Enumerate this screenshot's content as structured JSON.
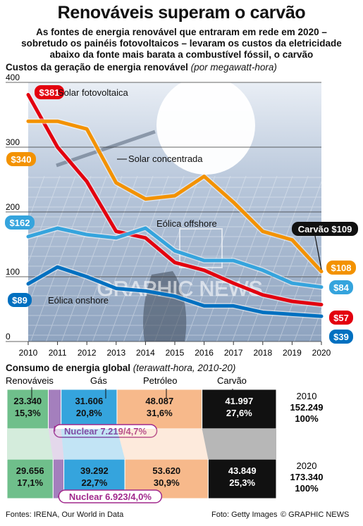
{
  "header": {
    "title": "Renováveis superam o carvão",
    "subtitle": "As fontes de energia renovável que entraram em rede em 2020 – sobretudo os painéis fotovoltaicos – levaram os custos da eletricidade abaixo da fonte mais barata a combustível fóssil, o carvão"
  },
  "chart_data": [
    {
      "type": "line",
      "title": "Custos da geração de energia renovável",
      "title_note": "(por megawatt-hora)",
      "x": [
        2010,
        2011,
        2012,
        2013,
        2014,
        2015,
        2016,
        2017,
        2018,
        2019,
        2020
      ],
      "ylim": [
        0,
        400
      ],
      "yticks": [
        0,
        100,
        200,
        300,
        400
      ],
      "grid": true,
      "series": [
        {
          "name": "Solar fotovoltaica",
          "color": "#e3000f",
          "start_label": "$381",
          "end_label": "$57",
          "values": [
            381,
            300,
            247,
            170,
            160,
            122,
            110,
            90,
            72,
            62,
            57
          ]
        },
        {
          "name": "Solar concentrada",
          "color": "#f39200",
          "start_label": "$340",
          "end_label": "$108",
          "values": [
            340,
            340,
            328,
            245,
            220,
            225,
            255,
            215,
            170,
            157,
            108
          ]
        },
        {
          "name": "Eólica offshore",
          "color": "#35a4dd",
          "start_label": "$162",
          "end_label": "$84",
          "values": [
            162,
            175,
            165,
            160,
            175,
            140,
            125,
            125,
            110,
            90,
            84
          ]
        },
        {
          "name": "Eólica onshore",
          "color": "#0070c0",
          "start_label": "$89",
          "end_label": "$39",
          "values": [
            89,
            115,
            100,
            82,
            78,
            70,
            55,
            55,
            45,
            42,
            39
          ]
        }
      ],
      "reference": {
        "label": "Carvão $109",
        "value": 109
      }
    },
    {
      "type": "bar",
      "title": "Consumo de energia global",
      "title_note": "(terawatt-hora, 2010-20)",
      "categories": [
        "Renováveis",
        "Nuclear",
        "Gás",
        "Petróleo",
        "Carvão"
      ],
      "colors": [
        "#6fbf8b",
        "#a47fbd",
        "#35a4dd",
        "#f7b98b",
        "#111111"
      ],
      "rows": [
        {
          "year": "2010",
          "total": "152.249",
          "total_pct": "100%",
          "values": [
            23340,
            7219,
            31606,
            48087,
            41997
          ],
          "labels": [
            "23.340",
            "7.219",
            "31.606",
            "48.087",
            "41.997"
          ],
          "pcts": [
            "15,3%",
            "4,7%",
            "20,8%",
            "31,6%",
            "27,6%"
          ],
          "nuclear_label": "Nuclear 7.219/4,7%"
        },
        {
          "year": "2020",
          "total": "173.340",
          "total_pct": "100%",
          "values": [
            29656,
            6923,
            39292,
            53620,
            43849
          ],
          "labels": [
            "29.656",
            "6.923",
            "39.292",
            "53.620",
            "43.849"
          ],
          "pcts": [
            "17,1%",
            "4,0%",
            "22,7%",
            "30,9%",
            "25,3%"
          ],
          "nuclear_label": "Nuclear 6.923/4,0%"
        }
      ]
    }
  ],
  "footer": {
    "sources": "Fontes: IRENA, Our World in Data",
    "photo": "Foto: Getty Images",
    "credit": "© GRAPHIC NEWS"
  },
  "watermark": "GRAPHIC NEWS",
  "colors": {
    "accent_nuclear": "#a0288c",
    "grid": "#333333"
  }
}
